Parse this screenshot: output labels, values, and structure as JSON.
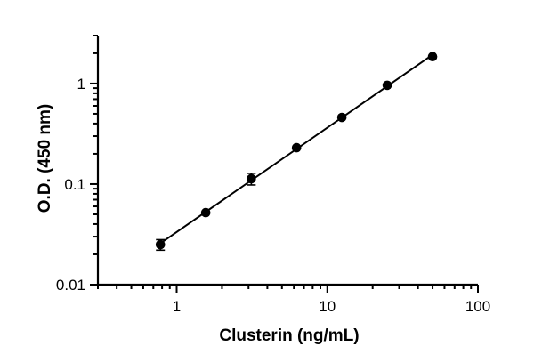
{
  "chart_data": {
    "type": "scatter",
    "title": "",
    "xlabel": "Clusterin (ng/mL)",
    "ylabel": "O.D. (450 nm)",
    "xscale": "log",
    "yscale": "log",
    "xlim": [
      0.3,
      100
    ],
    "ylim": [
      0.01,
      3
    ],
    "x_ticks": [
      1,
      10,
      100
    ],
    "x_tick_labels": [
      "1",
      "10",
      "100"
    ],
    "y_ticks": [
      0.01,
      0.1,
      1
    ],
    "y_tick_labels": [
      "0.01",
      "0.1",
      "1"
    ],
    "grid": false,
    "legend": "none",
    "series": [
      {
        "x": [
          0.78,
          1.56,
          3.13,
          6.25,
          12.5,
          25,
          50
        ],
        "y": [
          0.025,
          0.052,
          0.113,
          0.23,
          0.46,
          0.96,
          1.85
        ],
        "y_err": [
          0.003,
          0.002,
          0.015,
          0.006,
          0.01,
          0.02,
          0.03
        ],
        "color": "#000000",
        "marker": "circle",
        "fit_line": true
      }
    ]
  }
}
